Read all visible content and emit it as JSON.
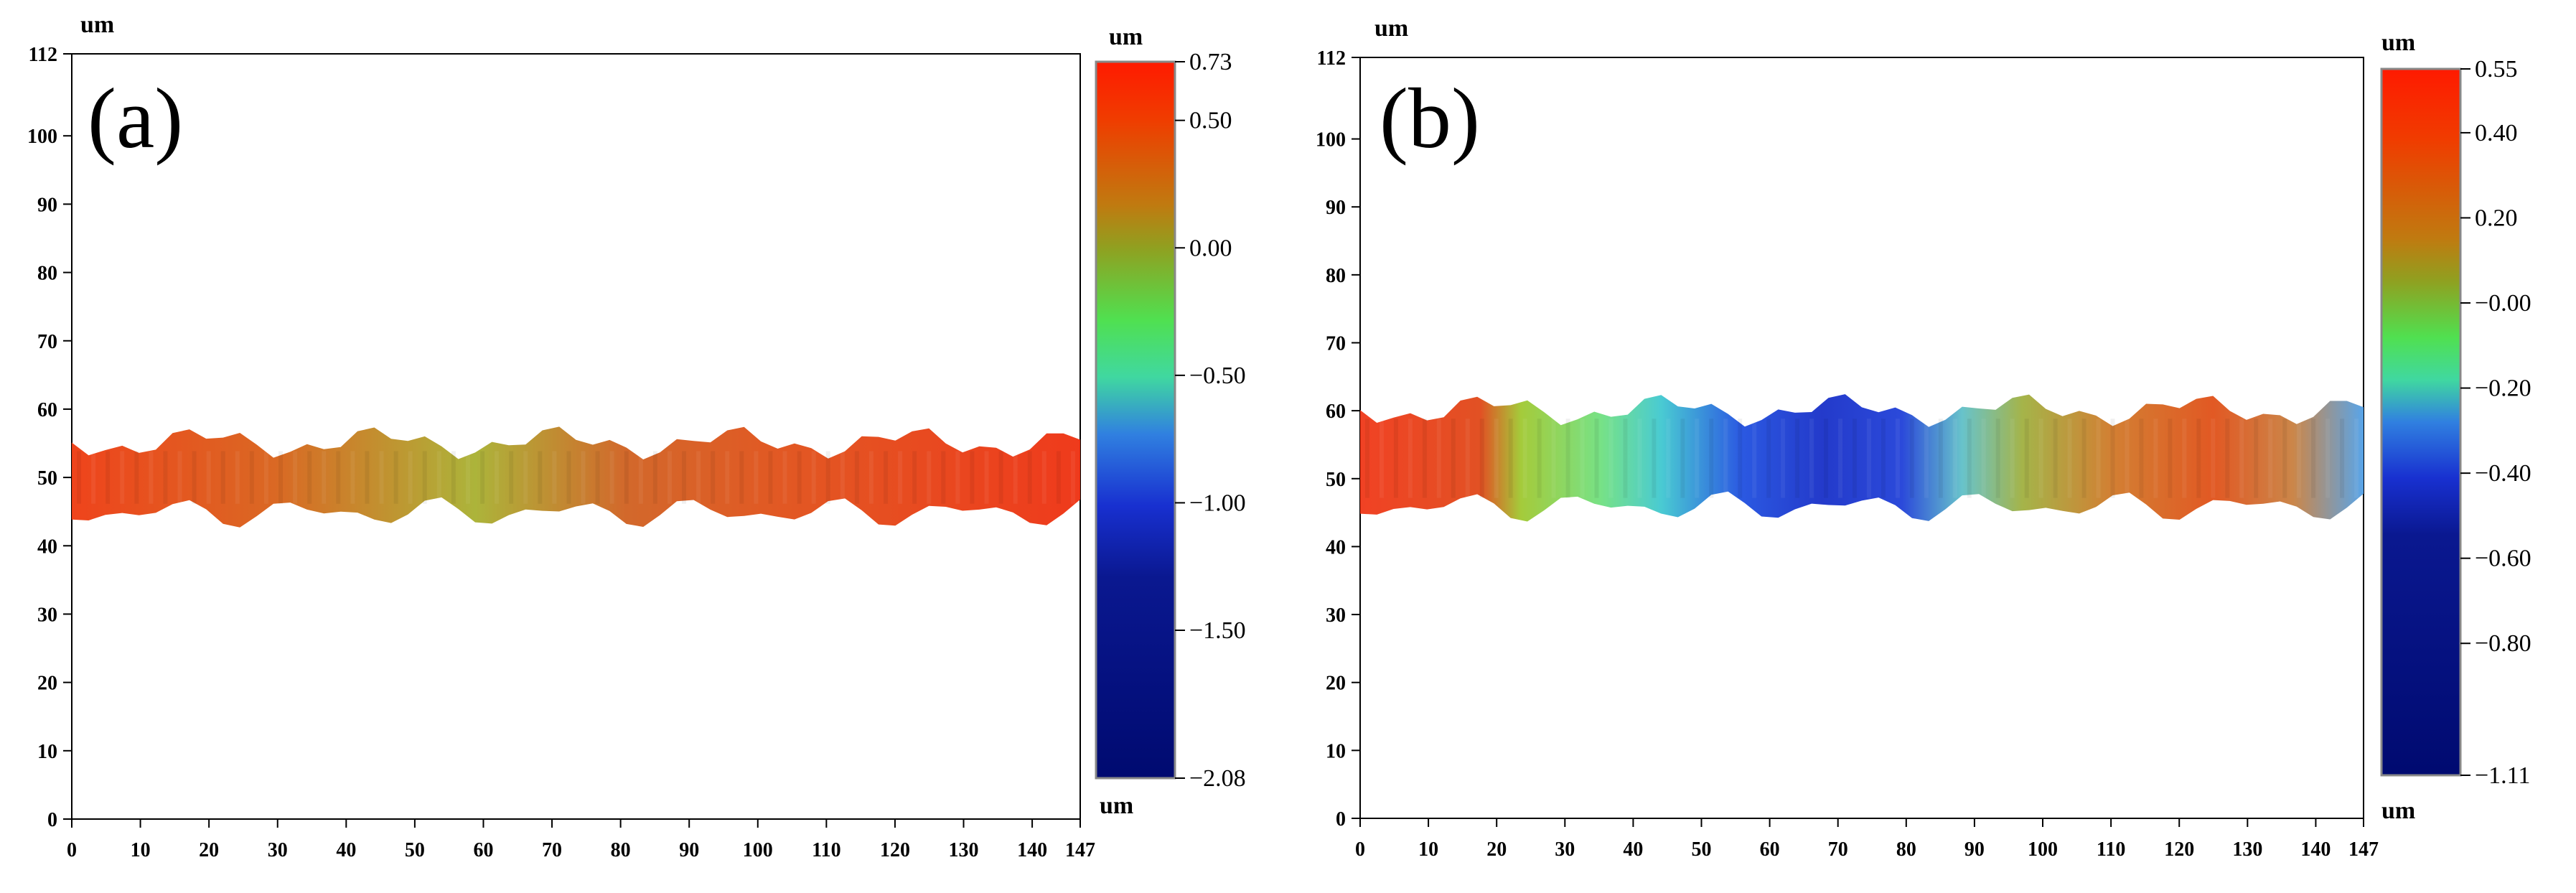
{
  "chart_data": [
    {
      "type": "heatmap",
      "panel": "(a)",
      "x_unit": "um",
      "y_unit": "um",
      "xlim": [
        0,
        147
      ],
      "ylim": [
        0,
        112
      ],
      "x_ticks": [
        "0",
        "10",
        "20",
        "30",
        "40",
        "50",
        "60",
        "70",
        "80",
        "90",
        "100",
        "110",
        "120",
        "130",
        "140",
        "147"
      ],
      "x_tick_values": [
        0,
        10,
        20,
        30,
        40,
        50,
        60,
        70,
        80,
        90,
        100,
        110,
        120,
        130,
        140,
        147
      ],
      "y_ticks": [
        "0",
        "10",
        "20",
        "30",
        "40",
        "50",
        "60",
        "70",
        "80",
        "90",
        "100",
        "112"
      ],
      "y_tick_values": [
        0,
        10,
        20,
        30,
        40,
        50,
        60,
        70,
        80,
        90,
        100,
        112
      ],
      "colorbar": {
        "unit_top": "um",
        "unit_bottom": "um",
        "range": [
          -2.08,
          0.73
        ],
        "tick_labels": [
          "0.73",
          "0.50",
          "0.00",
          "−0.50",
          "−1.00",
          "−1.50",
          "−2.08"
        ],
        "tick_values": [
          0.73,
          0.5,
          0.0,
          -0.5,
          -1.0,
          -1.5,
          -2.08
        ]
      },
      "description_values": {
        "band_y_range": [
          43,
          57
        ],
        "band_x_range": [
          0,
          147
        ]
      }
    },
    {
      "type": "heatmap",
      "panel": "(b)",
      "x_unit": "um",
      "y_unit": "um",
      "xlim": [
        0,
        147
      ],
      "ylim": [
        0,
        112
      ],
      "x_ticks": [
        "0",
        "10",
        "20",
        "30",
        "40",
        "50",
        "60",
        "70",
        "80",
        "90",
        "100",
        "110",
        "120",
        "130",
        "140",
        "147"
      ],
      "x_tick_values": [
        0,
        10,
        20,
        30,
        40,
        50,
        60,
        70,
        80,
        90,
        100,
        110,
        120,
        130,
        140,
        147
      ],
      "y_ticks": [
        "0",
        "10",
        "20",
        "30",
        "40",
        "50",
        "60",
        "70",
        "80",
        "90",
        "100",
        "112"
      ],
      "y_tick_values": [
        0,
        10,
        20,
        30,
        40,
        50,
        60,
        70,
        80,
        90,
        100,
        112
      ],
      "colorbar": {
        "unit_top": "um",
        "unit_bottom": "um",
        "range": [
          -1.11,
          0.55
        ],
        "tick_labels": [
          "0.55",
          "0.40",
          "0.20",
          "−0.00",
          "−0.20",
          "−0.40",
          "−0.60",
          "−0.80",
          "−1.11"
        ],
        "tick_values": [
          0.55,
          0.4,
          0.2,
          -0.0,
          -0.2,
          -0.4,
          -0.6,
          -0.8,
          -1.11
        ]
      },
      "description_values": {
        "band_y_range": [
          44,
          62
        ],
        "band_x_range": [
          0,
          147
        ]
      }
    }
  ]
}
